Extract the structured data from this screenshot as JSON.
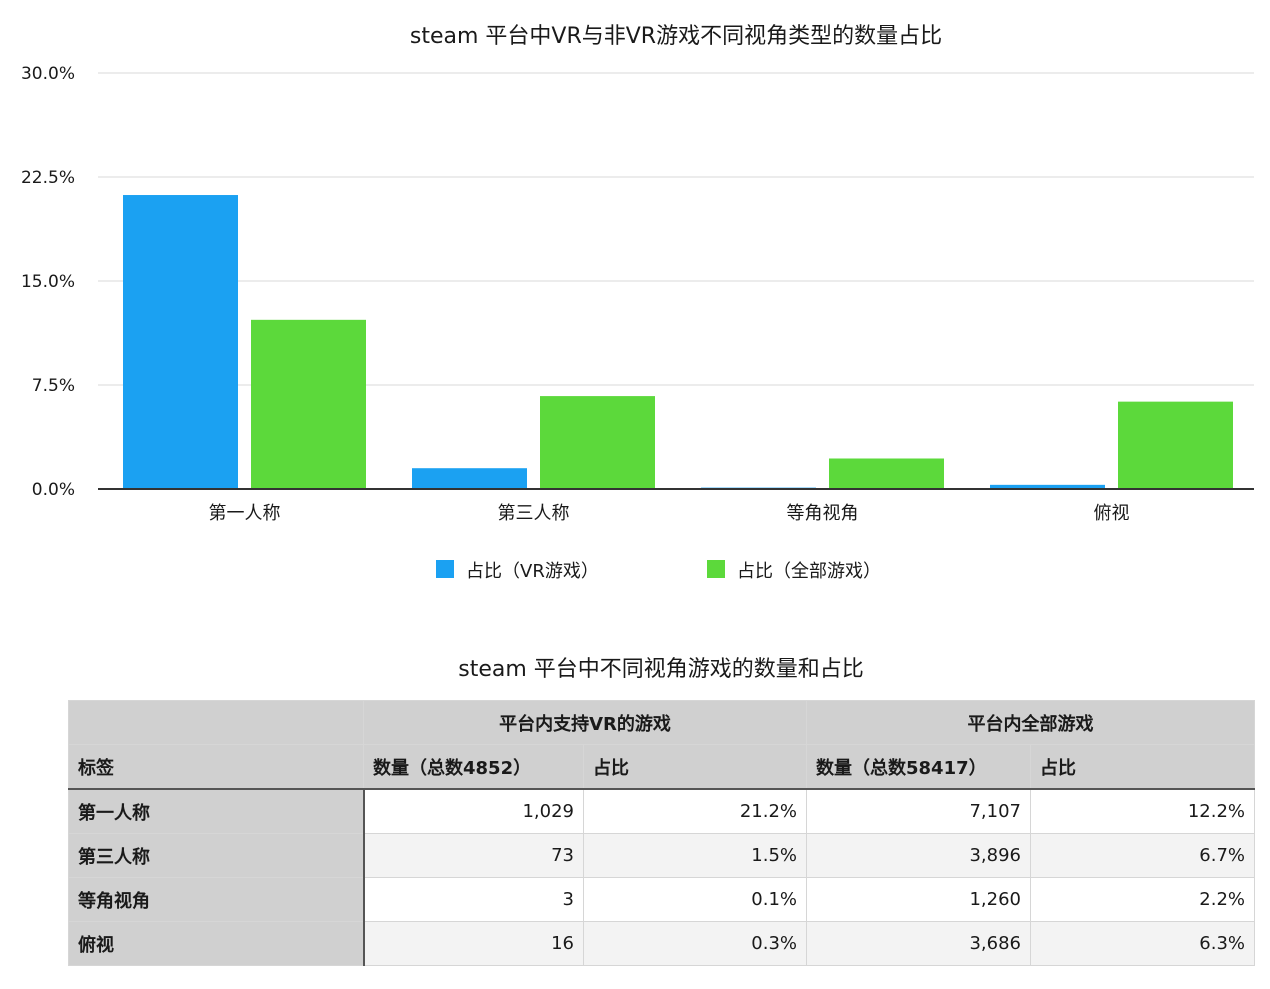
{
  "chart_data": {
    "type": "bar",
    "title": "steam 平台中VR与非VR游戏不同视角类型的数量占比",
    "categories": [
      "第一人称",
      "第三人称",
      "等角视角",
      "俯视"
    ],
    "series": [
      {
        "name": "占比（VR游戏）",
        "values": [
          21.2,
          1.5,
          0.1,
          0.3
        ],
        "color": "#1ba1f2"
      },
      {
        "name": "占比（全部游戏）",
        "values": [
          12.2,
          6.7,
          2.2,
          6.3
        ],
        "color": "#5cd93b"
      }
    ],
    "yticks": [
      "0.0%",
      "7.5%",
      "15.0%",
      "22.5%",
      "30.0%"
    ],
    "ytick_values": [
      0,
      7.5,
      15,
      22.5,
      30
    ],
    "ylim": [
      0,
      30
    ],
    "grid": true,
    "legend_position": "bottom"
  },
  "table": {
    "title": "steam 平台中不同视角游戏的数量和占比",
    "group_headers": [
      "平台内支持VR的游戏",
      "平台内全部游戏"
    ],
    "col_headers": [
      "标签",
      "数量（总数4852）",
      "占比",
      "数量（总数58417）",
      "占比"
    ],
    "rows": [
      {
        "label": "第一人称",
        "vr_count": "1,029",
        "vr_share": "21.2%",
        "all_count": "7,107",
        "all_share": "12.2%"
      },
      {
        "label": "第三人称",
        "vr_count": "73",
        "vr_share": "1.5%",
        "all_count": "3,896",
        "all_share": "6.7%"
      },
      {
        "label": "等角视角",
        "vr_count": "3",
        "vr_share": "0.1%",
        "all_count": "1,260",
        "all_share": "2.2%"
      },
      {
        "label": "俯视",
        "vr_count": "16",
        "vr_share": "0.3%",
        "all_count": "3,686",
        "all_share": "6.3%"
      }
    ]
  }
}
